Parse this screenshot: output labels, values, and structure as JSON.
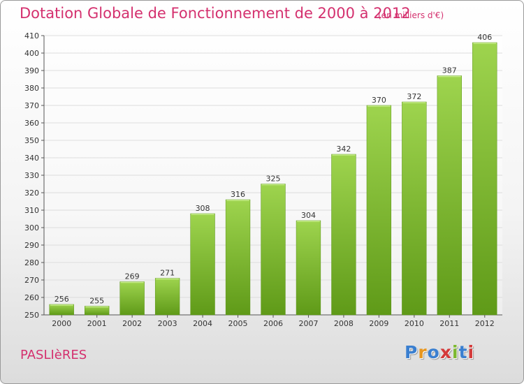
{
  "chart_data": {
    "type": "bar",
    "title": "Dotation Globale de Fonctionnement de 2000 à 2012",
    "unit_note": "(en milliers d'€)",
    "categories": [
      "2000",
      "2001",
      "2002",
      "2003",
      "2004",
      "2005",
      "2006",
      "2007",
      "2008",
      "2009",
      "2010",
      "2011",
      "2012"
    ],
    "values": [
      256,
      255,
      269,
      271,
      308,
      316,
      325,
      304,
      342,
      370,
      372,
      387,
      406
    ],
    "ylim": [
      250,
      410
    ],
    "yticks": [
      250,
      260,
      270,
      280,
      290,
      300,
      310,
      320,
      330,
      340,
      350,
      360,
      370,
      380,
      390,
      400,
      410
    ],
    "grid": true,
    "xlabel": "",
    "ylabel": ""
  },
  "commune": "PASLIèRES",
  "brand": {
    "text": "Proxiti",
    "colors": [
      "#3a7fd0",
      "#e8961e",
      "#3a7fd0",
      "#d43a3a",
      "#7cb82f",
      "#3a7fd0",
      "#d43a3a"
    ]
  },
  "colors": {
    "title": "#d4306e",
    "bar_top": "#9ed44e",
    "bar_bottom": "#5f9a18",
    "grid": "#dddddd"
  }
}
